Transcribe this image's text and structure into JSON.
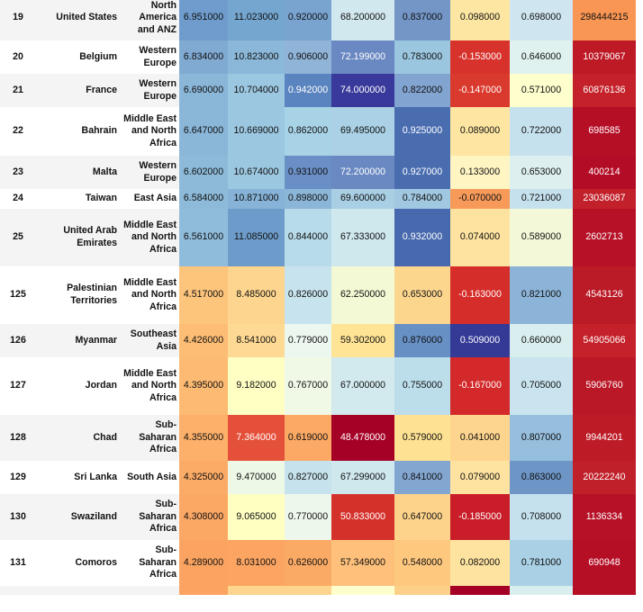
{
  "rows": [
    {
      "rank": "19",
      "country": "United States",
      "region": "North America and ANZ",
      "values": [
        "6.951000",
        "11.023000",
        "0.920000",
        "68.200000",
        "0.837000",
        "0.098000",
        "0.698000",
        "298444215"
      ],
      "colors": [
        "#6f9ccc",
        "#74a6d0",
        "#7aa4d0",
        "#d2e8ef",
        "#7396c7",
        "#fde6a2",
        "#cfe6f0",
        "#f99654"
      ]
    },
    {
      "rank": "20",
      "country": "Belgium",
      "region": "Western Europe",
      "values": [
        "6.834000",
        "10.823000",
        "0.906000",
        "72.199000",
        "0.783000",
        "-0.153000",
        "0.646000",
        "10379067"
      ],
      "colors": [
        "#80aad2",
        "#8bb8d9",
        "#8fb4d8",
        "#6a88c1",
        "#9bc6e0",
        "#d8322c",
        "#e0f2ef",
        "#bd1a26"
      ]
    },
    {
      "rank": "21",
      "country": "France",
      "region": "Western Europe",
      "values": [
        "6.690000",
        "10.704000",
        "0.942000",
        "74.000000",
        "0.822000",
        "-0.147000",
        "0.571000",
        "60876136"
      ],
      "colors": [
        "#8ab6d8",
        "#9cc7e0",
        "#5a84bf",
        "#38399a",
        "#82a4d1",
        "#da3a2d",
        "#ffffcd",
        "#c4212a"
      ]
    },
    {
      "rank": "22",
      "country": "Bahrain",
      "region": "Middle East and North Africa",
      "values": [
        "6.647000",
        "10.669000",
        "0.862000",
        "69.495000",
        "0.925000",
        "0.089000",
        "0.722000",
        "698585"
      ],
      "colors": [
        "#8ab6d8",
        "#9cc7e0",
        "#a8d3e7",
        "#aad1e5",
        "#4a6db0",
        "#fee6a2",
        "#c6e1ee",
        "#b50f26"
      ]
    },
    {
      "rank": "23",
      "country": "Malta",
      "region": "Western Europe",
      "values": [
        "6.602000",
        "10.674000",
        "0.931000",
        "72.200000",
        "0.927000",
        "0.133000",
        "0.653000",
        "400214"
      ],
      "colors": [
        "#8dbad9",
        "#9cc7e0",
        "#6a8fc6",
        "#6a88c1",
        "#4a6db0",
        "#fff5c3",
        "#ddf0ef",
        "#b30c26"
      ]
    },
    {
      "rank": "24",
      "country": "Taiwan",
      "region": "East Asia",
      "values": [
        "6.584000",
        "10.871000",
        "0.898000",
        "69.600000",
        "0.784000",
        "-0.070000",
        "0.721000",
        "23036087"
      ],
      "colors": [
        "#8dbad9",
        "#86b3d7",
        "#8cb6d8",
        "#a9cfe4",
        "#a0c8e1",
        "#f79a59",
        "#c6e1ee",
        "#c2202a"
      ]
    },
    {
      "rank": "25",
      "country": "United Arab Emirates",
      "region": "Middle East and North Africa",
      "values": [
        "6.561000",
        "11.085000",
        "0.844000",
        "67.333000",
        "0.932000",
        "0.074000",
        "0.589000",
        "2602713"
      ],
      "colors": [
        "#90bcdb",
        "#6e9cca",
        "#b8dbea",
        "#cfe8ee",
        "#4869ad",
        "#fee3a0",
        "#f3f9d8",
        "#b61127"
      ]
    },
    {
      "rank": "125",
      "country": "Palestinian Territories",
      "region": "Middle East and North Africa",
      "values": [
        "4.517000",
        "8.485000",
        "0.826000",
        "62.250000",
        "0.653000",
        "-0.163000",
        "0.821000",
        "4543126"
      ],
      "colors": [
        "#fdc47c",
        "#fed58e",
        "#c7e3ed",
        "#f3f9d4",
        "#fdd68e",
        "#d52e2a",
        "#8cb4d8",
        "#bb1a27"
      ]
    },
    {
      "rank": "126",
      "country": "Myanmar",
      "region": "Southeast Asia",
      "values": [
        "4.426000",
        "8.541000",
        "0.779000",
        "59.302000",
        "0.876000",
        "0.509000",
        "0.660000",
        "54905066"
      ],
      "colors": [
        "#fdbd74",
        "#fed993",
        "#ecf7ef",
        "#ffe495",
        "#6790c5",
        "#353a97",
        "#d9eeef",
        "#c4212a"
      ]
    },
    {
      "rank": "127",
      "country": "Jordan",
      "region": "Middle East and North Africa",
      "values": [
        "4.395000",
        "9.182000",
        "0.767000",
        "67.000000",
        "0.755000",
        "-0.167000",
        "0.705000",
        "5906760"
      ],
      "colors": [
        "#fdba72",
        "#ffffc4",
        "#f0f8e6",
        "#d2e9ee",
        "#bcdeeb",
        "#d3292a",
        "#c9e4ee",
        "#ba1827"
      ]
    },
    {
      "rank": "128",
      "country": "Chad",
      "region": "Sub-Saharan Africa",
      "values": [
        "4.355000",
        "7.364000",
        "0.619000",
        "48.478000",
        "0.579000",
        "0.041000",
        "0.807000",
        "9944201"
      ],
      "colors": [
        "#fcb06a",
        "#e5503a",
        "#fba964",
        "#a50026",
        "#fee192",
        "#fed58e",
        "#96bedd",
        "#bd1c27"
      ]
    },
    {
      "rank": "129",
      "country": "Sri Lanka",
      "region": "South Asia",
      "values": [
        "4.325000",
        "9.470000",
        "0.827000",
        "67.299000",
        "0.841000",
        "0.079000",
        "0.863000",
        "20222240"
      ],
      "colors": [
        "#fcab66",
        "#edf8e7",
        "#c6e2ec",
        "#cfe8ee",
        "#83a6d1",
        "#fee3a0",
        "#6d95c6",
        "#c0202a"
      ]
    },
    {
      "rank": "130",
      "country": "Swaziland",
      "region": "Sub-Saharan Africa",
      "values": [
        "4.308000",
        "9.065000",
        "0.770000",
        "50.833000",
        "0.647000",
        "-0.185000",
        "0.708000",
        "1136334"
      ],
      "colors": [
        "#fca865",
        "#ffffc2",
        "#eef7eb",
        "#d5312b",
        "#fdd38c",
        "#c91e29",
        "#c6e1ee",
        "#b61127"
      ]
    },
    {
      "rank": "131",
      "country": "Comoros",
      "region": "Sub-Saharan Africa",
      "values": [
        "4.289000",
        "8.031000",
        "0.626000",
        "57.349000",
        "0.548000",
        "0.082000",
        "0.781000",
        "690948"
      ],
      "colors": [
        "#fba461",
        "#fca562",
        "#fbaa65",
        "#fec07a",
        "#fec87f",
        "#fee3a0",
        "#a9d0e5",
        "#b50f26"
      ]
    }
  ]
}
